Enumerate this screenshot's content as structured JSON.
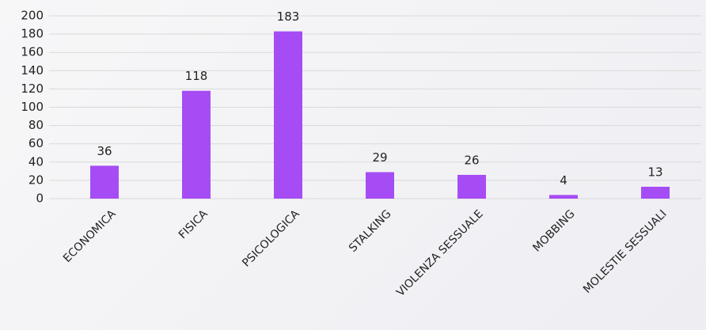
{
  "chart_data": {
    "type": "bar",
    "categories": [
      "ECONOMICA",
      "FISICA",
      "PSICOLOGICA",
      "STALKING",
      "VIOLENZA SESSUALE",
      "MOBBING",
      "MOLESTIE SESSUALI"
    ],
    "values": [
      36,
      118,
      183,
      29,
      26,
      4,
      13
    ],
    "color": "#a64cf4",
    "ylim": [
      0,
      200
    ],
    "yticks": [
      0,
      20,
      40,
      60,
      80,
      100,
      120,
      140,
      160,
      180,
      200
    ],
    "grid": true
  }
}
